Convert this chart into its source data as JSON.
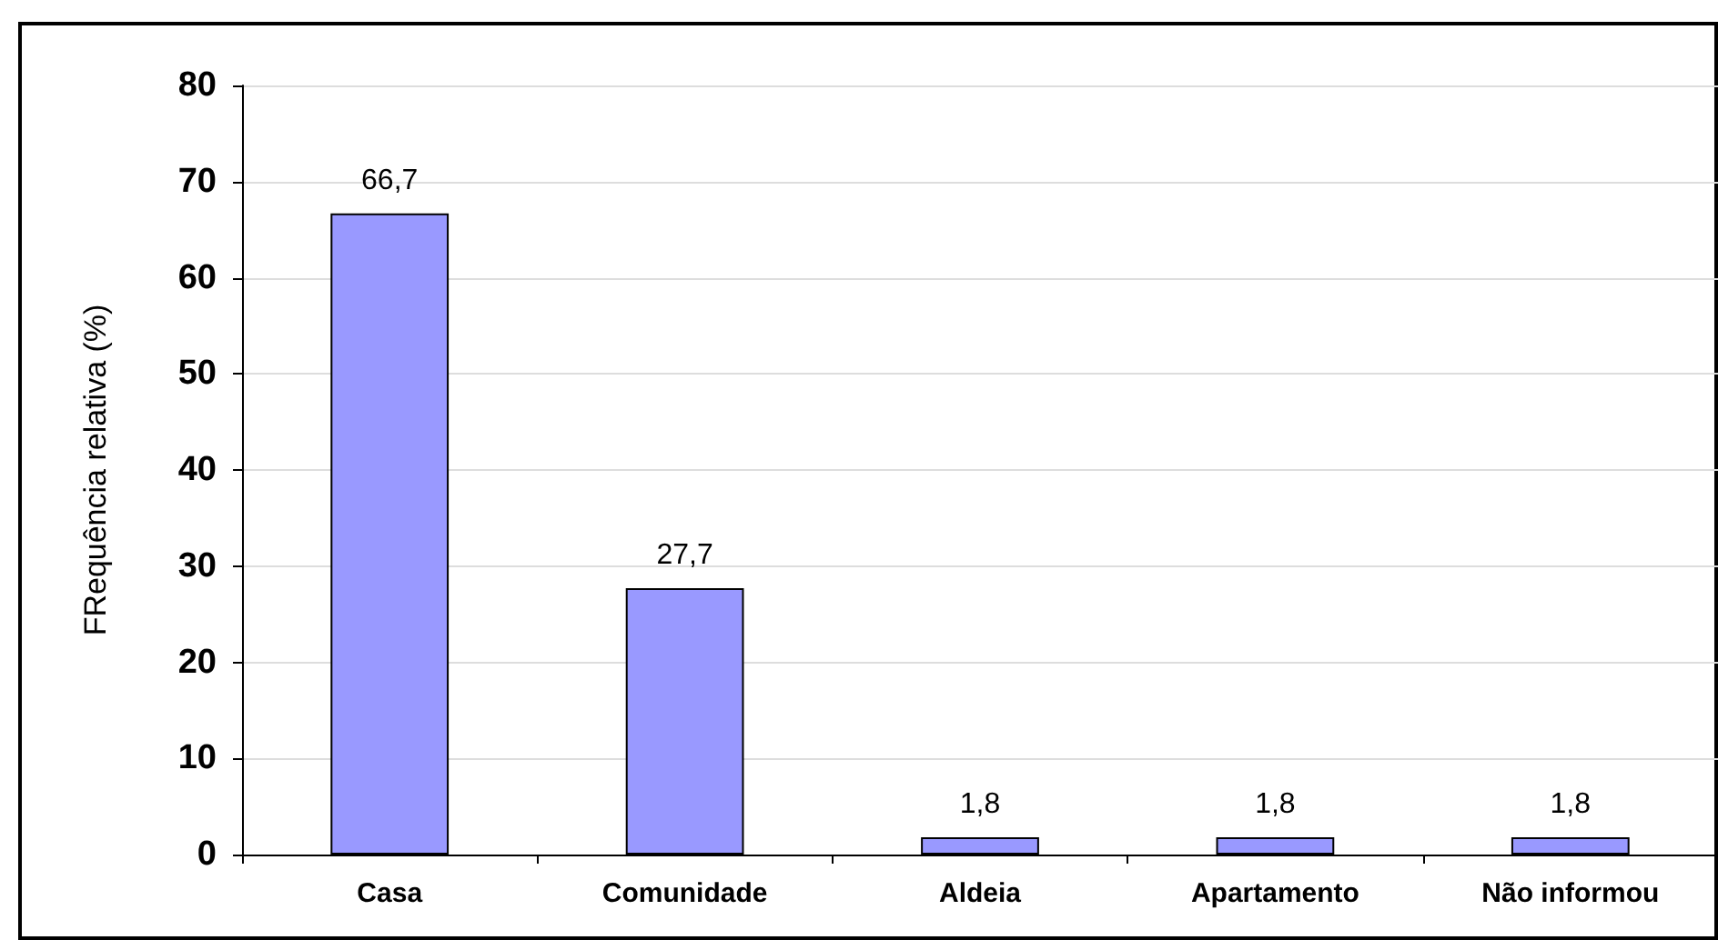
{
  "chart_data": {
    "type": "bar",
    "ylabel": "FRequência relativa (%)",
    "categories": [
      "Casa",
      "Comunidade",
      "Aldeia",
      "Apartamento",
      "Não informou"
    ],
    "values": [
      66.7,
      27.7,
      1.8,
      1.8,
      1.8
    ],
    "value_labels": [
      "66,7",
      "27,7",
      "1,8",
      "1,8",
      "1,8"
    ],
    "color": "#9999ff",
    "ylim": [
      0,
      80
    ],
    "yticks": [
      0,
      10,
      20,
      30,
      40,
      50,
      60,
      70,
      80
    ],
    "grid": "y"
  }
}
